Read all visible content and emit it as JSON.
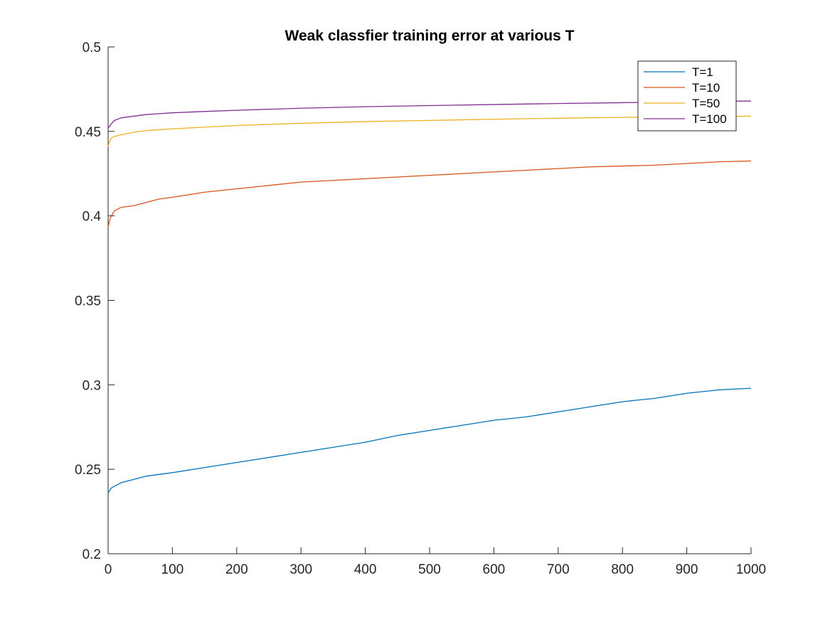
{
  "chart_data": {
    "type": "line",
    "title": "Weak classfier training error at various T",
    "xlabel": "",
    "ylabel": "",
    "xlim": [
      0,
      1000
    ],
    "ylim": [
      0.2,
      0.5
    ],
    "xticks": [
      0,
      100,
      200,
      300,
      400,
      500,
      600,
      700,
      800,
      900,
      1000
    ],
    "yticks": [
      0.2,
      0.25,
      0.3,
      0.35,
      0.4,
      0.45,
      0.5
    ],
    "xtick_labels": [
      "0",
      "100",
      "200",
      "300",
      "400",
      "500",
      "600",
      "700",
      "800",
      "900",
      "1000"
    ],
    "ytick_labels": [
      "0.2",
      "0.25",
      "0.3",
      "0.35",
      "0.4",
      "0.45",
      "0.5"
    ],
    "grid": false,
    "legend_position": "top-right",
    "series": [
      {
        "name": "T=1",
        "color": "#0072BD",
        "x": [
          0,
          5,
          10,
          20,
          40,
          60,
          80,
          100,
          150,
          200,
          250,
          300,
          350,
          400,
          450,
          500,
          550,
          600,
          650,
          700,
          750,
          800,
          850,
          900,
          950,
          1000
        ],
        "y": [
          0.236,
          0.239,
          0.24,
          0.242,
          0.244,
          0.246,
          0.247,
          0.248,
          0.251,
          0.254,
          0.257,
          0.26,
          0.263,
          0.266,
          0.27,
          0.273,
          0.276,
          0.279,
          0.281,
          0.284,
          0.287,
          0.29,
          0.292,
          0.295,
          0.297,
          0.298
        ]
      },
      {
        "name": "T=10",
        "color": "#D95319",
        "x": [
          0,
          2,
          5,
          10,
          20,
          40,
          60,
          80,
          100,
          150,
          200,
          250,
          300,
          350,
          400,
          450,
          500,
          550,
          600,
          650,
          700,
          750,
          800,
          850,
          900,
          950,
          1000
        ],
        "y": [
          0.393,
          0.397,
          0.4,
          0.403,
          0.405,
          0.406,
          0.408,
          0.41,
          0.411,
          0.414,
          0.416,
          0.418,
          0.42,
          0.421,
          0.422,
          0.423,
          0.424,
          0.425,
          0.426,
          0.427,
          0.428,
          0.429,
          0.4295,
          0.43,
          0.431,
          0.432,
          0.4325
        ]
      },
      {
        "name": "T=50",
        "color": "#EDB120",
        "x": [
          0,
          2,
          5,
          10,
          20,
          40,
          60,
          80,
          100,
          150,
          200,
          300,
          400,
          500,
          600,
          700,
          800,
          900,
          1000
        ],
        "y": [
          0.441,
          0.444,
          0.446,
          0.447,
          0.448,
          0.4495,
          0.4505,
          0.451,
          0.4515,
          0.4525,
          0.4535,
          0.4548,
          0.4558,
          0.4565,
          0.4572,
          0.4578,
          0.4583,
          0.4587,
          0.459
        ]
      },
      {
        "name": "T=100",
        "color": "#7E2F8E",
        "x": [
          0,
          2,
          5,
          10,
          20,
          40,
          60,
          80,
          100,
          150,
          200,
          300,
          400,
          500,
          600,
          700,
          800,
          900,
          1000
        ],
        "y": [
          0.452,
          0.453,
          0.4545,
          0.4565,
          0.458,
          0.459,
          0.46,
          0.4605,
          0.461,
          0.4618,
          0.4625,
          0.4637,
          0.4646,
          0.4653,
          0.4659,
          0.4665,
          0.467,
          0.4675,
          0.468
        ]
      }
    ]
  }
}
